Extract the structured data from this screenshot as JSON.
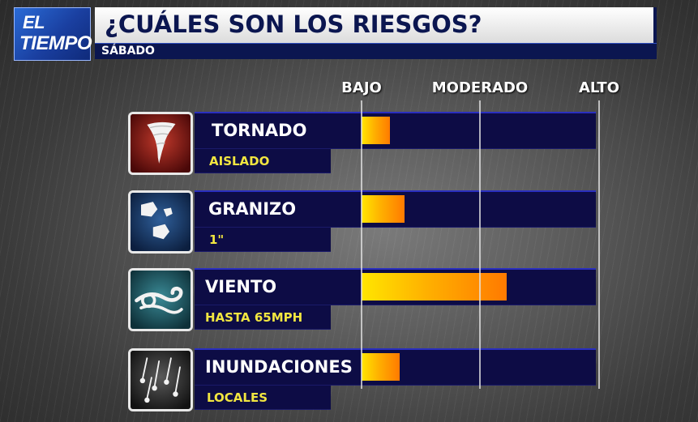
{
  "logo": {
    "line1": "EL",
    "line2": "TIEMPO"
  },
  "header": {
    "title": "¿CUÁLES SON LOS RIESGOS?",
    "subtitle": "SÁBADO"
  },
  "colors": {
    "bar_start": "#ffe600",
    "bar_end": "#ff7a00",
    "panel": "#0d0c45",
    "detail_text": "#f2e640"
  },
  "chart_data": {
    "type": "bar",
    "orientation": "horizontal",
    "scale_labels": [
      "BAJO",
      "MODERADO",
      "ALTO"
    ],
    "xlim": [
      0,
      1
    ],
    "categories": [
      "TORNADO",
      "GRANIZO",
      "VIENTO",
      "INUNDACIONES"
    ],
    "details": [
      "AISLADO",
      "1\"",
      "HASTA 65MPH",
      "LOCALES"
    ],
    "icons": [
      "tornado-icon",
      "hail-icon",
      "wind-icon",
      "rain-icon"
    ],
    "values": [
      0.12,
      0.18,
      0.61,
      0.16
    ]
  }
}
